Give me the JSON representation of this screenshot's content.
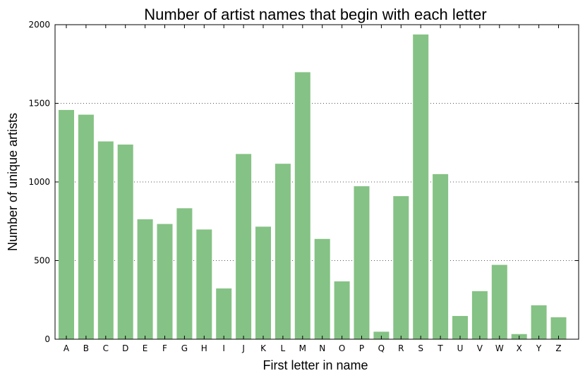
{
  "chart_data": {
    "type": "bar",
    "title": "Number of artist names that begin with each letter",
    "xlabel": "First letter in name",
    "ylabel": "Number of unique artists",
    "ylim": [
      0,
      2000
    ],
    "yticks": [
      0,
      500,
      1000,
      1500,
      2000
    ],
    "grid": "horizontal dotted at y ticks",
    "bar_color": "#85c285",
    "categories": [
      "A",
      "B",
      "C",
      "D",
      "E",
      "F",
      "G",
      "H",
      "I",
      "J",
      "K",
      "L",
      "M",
      "N",
      "O",
      "P",
      "Q",
      "R",
      "S",
      "T",
      "U",
      "V",
      "W",
      "X",
      "Y",
      "Z"
    ],
    "values": [
      1460,
      1430,
      1260,
      1240,
      765,
      735,
      835,
      700,
      325,
      1180,
      718,
      1118,
      1700,
      640,
      370,
      975,
      50,
      912,
      1940,
      1052,
      150,
      308,
      475,
      35,
      218,
      142
    ]
  }
}
